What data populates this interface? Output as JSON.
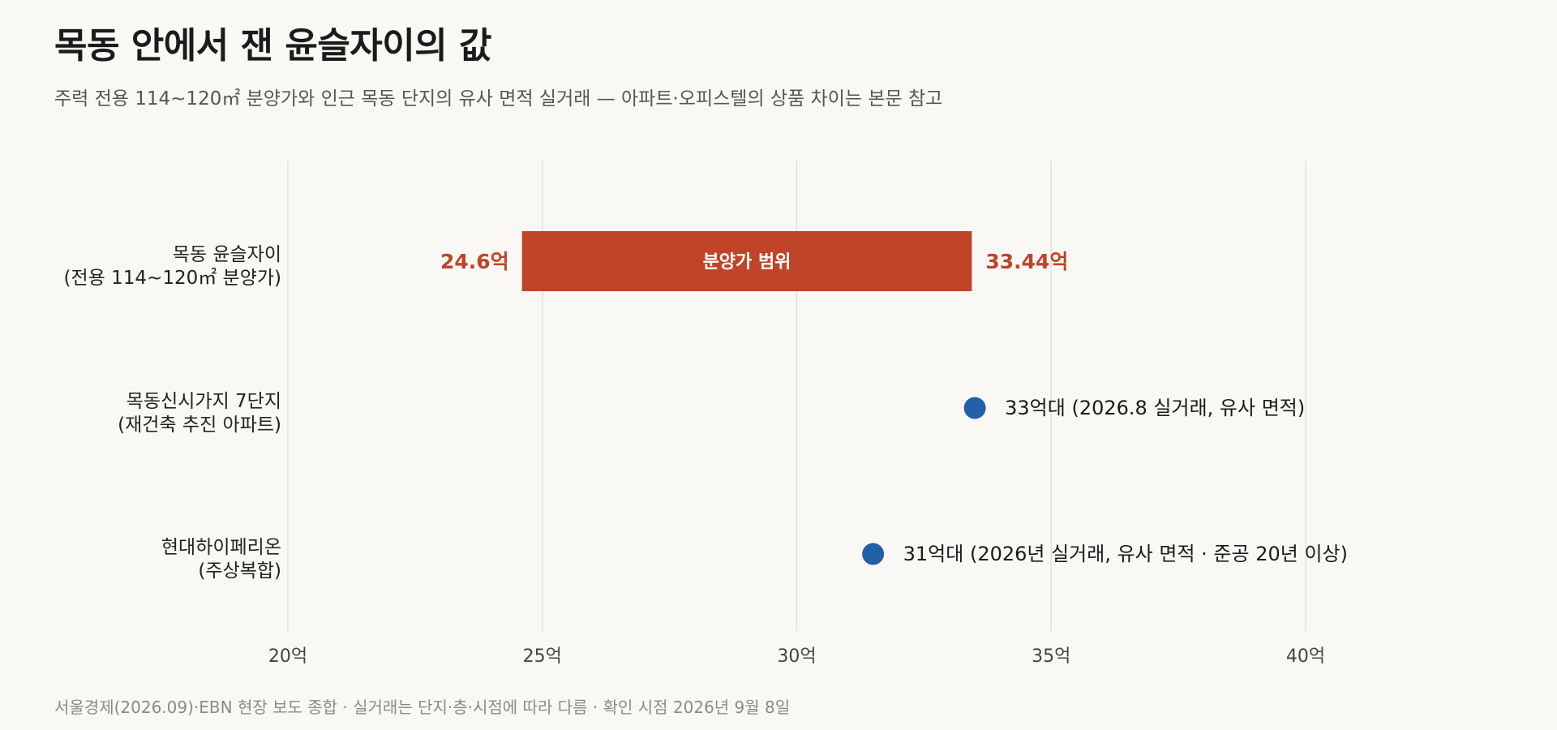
{
  "header": {
    "title": "목동 안에서 잰 윤슬자이의 값",
    "subtitle": "주력 전용 114~120㎡ 분양가와 인근 목동 단지의 유사 면적 실거래 — 아파트·오피스텔의 상품 차이는 본문 참고"
  },
  "footer": {
    "source": "서울경제(2026.09)·EBN 현장 보도 종합 · 실거래는 단지·층·시점에 따라 다름 · 확인 시점 2026년 9월 8일"
  },
  "chart_data": {
    "type": "range_dot",
    "xlim": [
      20,
      40
    ],
    "x_ticks": [
      20,
      25,
      30,
      35,
      40
    ],
    "tick_labels": [
      "20억",
      "25억",
      "30억",
      "35억",
      "40억"
    ],
    "grid": true,
    "colors": {
      "range": "#c04428",
      "point": "#2160a8"
    },
    "rows": [
      {
        "label_lines": [
          "목동 윤슬자이",
          "(전용 114~120㎡ 분양가)"
        ],
        "kind": "range",
        "min": 24.6,
        "max": 33.44,
        "min_label": "24.6억",
        "max_label": "33.44억",
        "bar_text": "분양가 범위"
      },
      {
        "label_lines": [
          "목동신시가지 7단지",
          "(재건축 추진 아파트)"
        ],
        "kind": "point",
        "value": 33.5,
        "annotation": "33억대 (2026.8 실거래, 유사 면적)"
      },
      {
        "label_lines": [
          "현대하이페리온",
          "(주상복합)"
        ],
        "kind": "point",
        "value": 31.5,
        "annotation": "31억대 (2026년 실거래, 유사 면적 · 준공 20년 이상)"
      }
    ]
  }
}
